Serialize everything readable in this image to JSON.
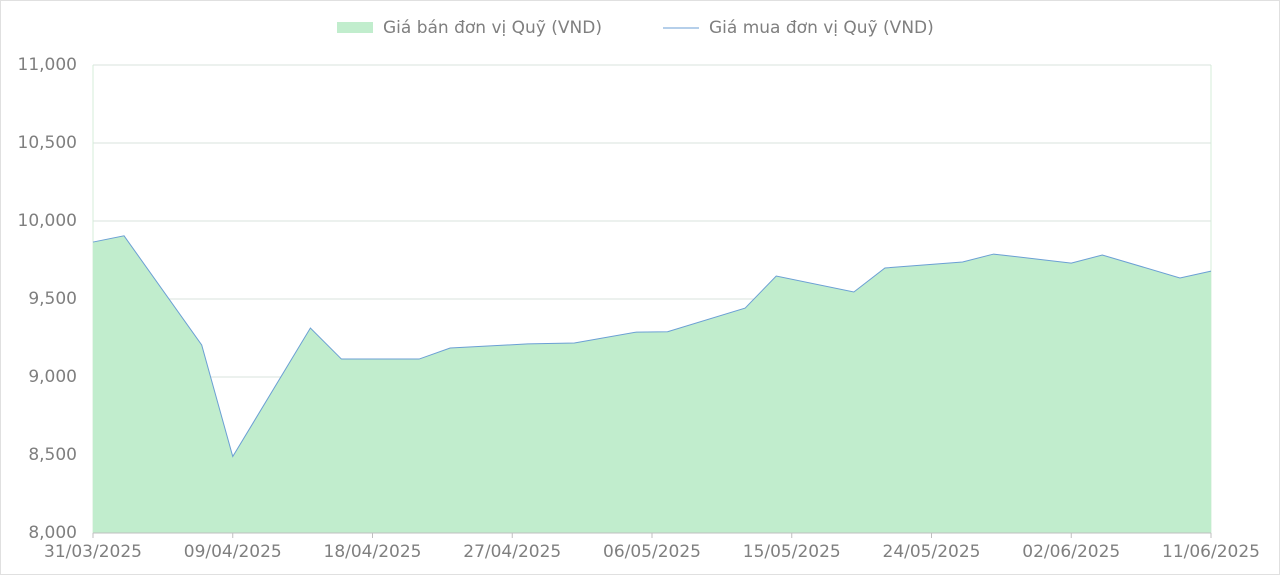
{
  "chart_data": {
    "type": "area",
    "x": [
      "31/03/2025",
      "02/04/2025",
      "07/04/2025",
      "09/04/2025",
      "14/04/2025",
      "16/04/2025",
      "21/04/2025",
      "23/04/2025",
      "28/04/2025",
      "01/05/2025",
      "05/05/2025",
      "07/05/2025",
      "12/05/2025",
      "14/05/2025",
      "19/05/2025",
      "21/05/2025",
      "26/05/2025",
      "28/05/2025",
      "02/06/2025",
      "04/06/2025",
      "09/06/2025",
      "11/06/2025"
    ],
    "series": [
      {
        "name": "Giá bán đơn vị Quỹ (VND)",
        "color": "#c1edcd",
        "style": "area",
        "values": [
          9865,
          9905,
          9205,
          8490,
          9314,
          9115,
          9115,
          9186,
          9212,
          9218,
          9288,
          9290,
          9442,
          9647,
          9545,
          9699,
          9737,
          9788,
          9730,
          9782,
          9635,
          9679
        ]
      },
      {
        "name": "Giá mua đơn vị Quỹ (VND)",
        "color": "#6b9fd4",
        "style": "line",
        "values": [
          9865,
          9905,
          9205,
          8490,
          9314,
          9115,
          9115,
          9186,
          9212,
          9218,
          9288,
          9290,
          9442,
          9647,
          9545,
          9699,
          9737,
          9788,
          9730,
          9782,
          9635,
          9679
        ]
      }
    ],
    "xlim": [
      "31/03/2025",
      "11/06/2025"
    ],
    "xticks": [
      "31/03/2025",
      "09/04/2025",
      "18/04/2025",
      "27/04/2025",
      "06/05/2025",
      "15/05/2025",
      "24/05/2025",
      "02/06/2025",
      "11/06/2025"
    ],
    "ylim": [
      8000,
      11000
    ],
    "yticks": [
      {
        "value": 8000,
        "label": "8,000"
      },
      {
        "value": 8500,
        "label": "8,500"
      },
      {
        "value": 9000,
        "label": "9,000"
      },
      {
        "value": 9500,
        "label": "9,500"
      },
      {
        "value": 10000,
        "label": "10,000"
      },
      {
        "value": 10500,
        "label": "10,500"
      },
      {
        "value": 11000,
        "label": "11,000"
      }
    ],
    "grid": true,
    "legend": "top"
  }
}
